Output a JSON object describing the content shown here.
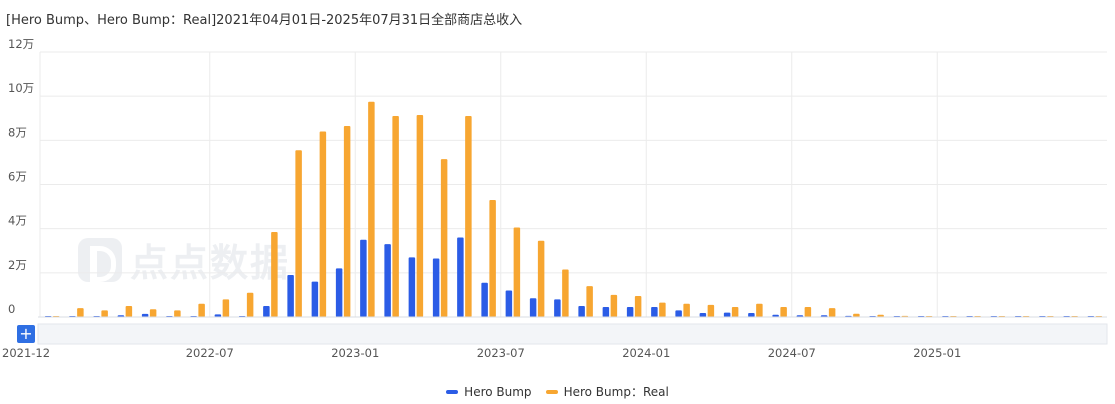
{
  "watermark": {
    "text": "点点数据"
  },
  "zoom_button": {
    "label": "+"
  },
  "chart_data": {
    "type": "bar",
    "title": "[Hero Bump、Hero Bump：Real]2021年04月01日-2025年07月31日全部商店总收入",
    "xlabel": "",
    "ylabel": "",
    "ylim": [
      0,
      120000
    ],
    "y_ticks": [
      0,
      20000,
      40000,
      60000,
      80000,
      100000,
      120000
    ],
    "y_tick_labels": [
      "0",
      "2万",
      "4万",
      "6万",
      "8万",
      "10万",
      "12万"
    ],
    "x_tick_labels": [
      "2021-12",
      "2022-07",
      "2023-01",
      "2023-07",
      "2024-01",
      "2024-07",
      "2025-01"
    ],
    "x_tick_months": [
      "2021-12",
      "2022-07",
      "2023-01",
      "2023-07",
      "2024-01",
      "2024-07",
      "2025-01"
    ],
    "grid": true,
    "legend_position": "bottom-center",
    "colors": {
      "Hero Bump": "#2b5ce6",
      "Hero Bump：Real": "#f7a631"
    },
    "categories": [
      "2021-12",
      "2022-01",
      "2022-02",
      "2022-03",
      "2022-04",
      "2022-05",
      "2022-06",
      "2022-07",
      "2022-08",
      "2022-09",
      "2022-10",
      "2022-11",
      "2022-12",
      "2023-01",
      "2023-02",
      "2023-03",
      "2023-04",
      "2023-05",
      "2023-06",
      "2023-07",
      "2023-08",
      "2023-09",
      "2023-10",
      "2023-11",
      "2023-12",
      "2024-01",
      "2024-02",
      "2024-03",
      "2024-04",
      "2024-05",
      "2024-06",
      "2024-07",
      "2024-08",
      "2024-09",
      "2024-10",
      "2024-11",
      "2024-12",
      "2025-01",
      "2025-02",
      "2025-03",
      "2025-04",
      "2025-05",
      "2025-06",
      "2025-07"
    ],
    "series": [
      {
        "name": "Hero Bump",
        "values": [
          400,
          200,
          200,
          800,
          1400,
          300,
          400,
          1200,
          400,
          5000,
          19000,
          16000,
          22000,
          35000,
          33000,
          27000,
          26500,
          36000,
          15500,
          12000,
          8500,
          8000,
          5000,
          4500,
          4500,
          4500,
          3000,
          1800,
          2000,
          1800,
          1000,
          800,
          800,
          500,
          400,
          300,
          300,
          300,
          300,
          200,
          200,
          200,
          200,
          200
        ]
      },
      {
        "name": "Hero Bump：Real",
        "values": [
          300,
          4000,
          3000,
          5000,
          3500,
          3000,
          6000,
          8000,
          11000,
          38500,
          75500,
          84000,
          86500,
          97500,
          91000,
          91500,
          71500,
          91000,
          53000,
          40500,
          34500,
          21500,
          14000,
          10000,
          9500,
          6500,
          6000,
          5500,
          4500,
          6000,
          4500,
          4500,
          4000,
          1500,
          1000,
          500,
          400,
          300,
          200,
          200,
          200,
          200,
          200,
          200
        ]
      }
    ]
  }
}
